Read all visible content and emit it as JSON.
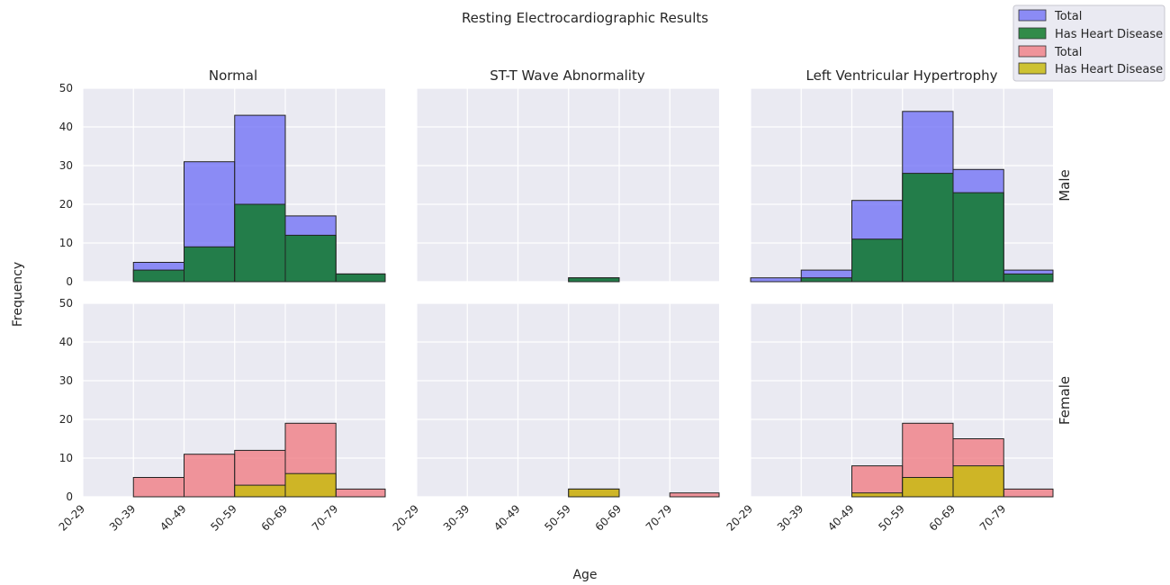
{
  "chart_data": {
    "type": "bar",
    "title": "Resting Electrocardiographic Results",
    "xlabel": "Age",
    "ylabel": "Frequency",
    "columns": [
      "Normal",
      "ST-T Wave Abnormality",
      "Left Ventricular Hypertrophy"
    ],
    "rows": [
      "Male",
      "Female"
    ],
    "categories": [
      "20-29",
      "30-39",
      "40-49",
      "50-59",
      "60-69",
      "70-79"
    ],
    "ylim": [
      0,
      50
    ],
    "yticks": [
      0,
      10,
      20,
      30,
      40,
      50
    ],
    "grid": true,
    "legend_position": "top-right",
    "legend": [
      {
        "label": "Total",
        "color": "#6b6bf5"
      },
      {
        "label": "Has Heart Disease",
        "color": "#117a2c"
      },
      {
        "label": "Total",
        "color": "#f0767c"
      },
      {
        "label": "Has Heart Disease",
        "color": "#c8bb12"
      }
    ],
    "panels": [
      {
        "row": "Male",
        "column": "Normal",
        "series": [
          {
            "name": "Total",
            "values": [
              0,
              5,
              31,
              43,
              17,
              2
            ]
          },
          {
            "name": "Has Heart Disease",
            "values": [
              0,
              3,
              9,
              20,
              12,
              2
            ]
          }
        ]
      },
      {
        "row": "Male",
        "column": "ST-T Wave Abnormality",
        "series": [
          {
            "name": "Total",
            "values": [
              0,
              0,
              0,
              1,
              0,
              0
            ]
          },
          {
            "name": "Has Heart Disease",
            "values": [
              0,
              0,
              0,
              1,
              0,
              0
            ]
          }
        ]
      },
      {
        "row": "Male",
        "column": "Left Ventricular Hypertrophy",
        "series": [
          {
            "name": "Total",
            "values": [
              1,
              3,
              21,
              44,
              29,
              3
            ]
          },
          {
            "name": "Has Heart Disease",
            "values": [
              0,
              1,
              11,
              28,
              23,
              2
            ]
          }
        ]
      },
      {
        "row": "Female",
        "column": "Normal",
        "series": [
          {
            "name": "Total",
            "values": [
              0,
              5,
              11,
              12,
              19,
              2
            ]
          },
          {
            "name": "Has Heart Disease",
            "values": [
              0,
              0,
              0,
              3,
              6,
              0
            ]
          }
        ]
      },
      {
        "row": "Female",
        "column": "ST-T Wave Abnormality",
        "series": [
          {
            "name": "Total",
            "values": [
              0,
              0,
              0,
              2,
              0,
              1
            ]
          },
          {
            "name": "Has Heart Disease",
            "values": [
              0,
              0,
              0,
              2,
              0,
              0
            ]
          }
        ]
      },
      {
        "row": "Female",
        "column": "Left Ventricular Hypertrophy",
        "series": [
          {
            "name": "Total",
            "values": [
              0,
              0,
              8,
              19,
              15,
              2
            ]
          },
          {
            "name": "Has Heart Disease",
            "values": [
              0,
              0,
              1,
              5,
              8,
              0
            ]
          }
        ]
      }
    ]
  }
}
